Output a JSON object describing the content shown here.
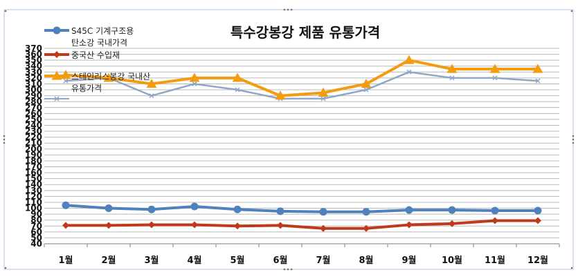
{
  "chart_data": {
    "type": "line",
    "title": "특수강봉강 제품 유통가격",
    "categories": [
      "1월",
      "2월",
      "3월",
      "4월",
      "5월",
      "6월",
      "7월",
      "8월",
      "9월",
      "10월",
      "11월",
      "12월"
    ],
    "yticks": [
      40,
      50,
      60,
      70,
      80,
      90,
      100,
      110,
      120,
      130,
      140,
      150,
      160,
      170,
      180,
      190,
      200,
      210,
      220,
      230,
      240,
      250,
      260,
      270,
      280,
      290,
      300,
      310,
      320,
      330,
      340,
      350,
      360,
      370
    ],
    "ylim": [
      40,
      370
    ],
    "grid": true,
    "legend_position": "top-left",
    "series": [
      {
        "name": "S45C 기계구조용 탄소강 국내가격",
        "legend_lines": [
          "S45C 기계구조용",
          "탄소강 국내가격"
        ],
        "color": "#4f81bd",
        "marker": "circle",
        "values": [
          105,
          100,
          98,
          103,
          98,
          95,
          94,
          94,
          97,
          97,
          96,
          96
        ]
      },
      {
        "name": "중국산 수입재",
        "legend_lines": [
          "중국산 수입재"
        ],
        "color": "#c0391b",
        "marker": "diamond",
        "values": [
          71,
          71,
          72,
          72,
          70,
          71,
          66,
          66,
          72,
          74,
          79,
          79
        ]
      },
      {
        "name": "스테인리스봉강 국내산 유통가격",
        "legend_lines": [
          "스테인리스봉강 국내산",
          "유통가격"
        ],
        "color": "#f39c12",
        "marker": "triangle",
        "values": [
          325,
          320,
          310,
          320,
          320,
          290,
          295,
          310,
          350,
          335,
          335,
          335
        ]
      },
      {
        "name": "",
        "legend_lines": [
          ""
        ],
        "color": "#8ea6c8",
        "marker": "x",
        "values": [
          315,
          320,
          290,
          310,
          300,
          285,
          285,
          300,
          330,
          320,
          320,
          315
        ]
      }
    ]
  }
}
